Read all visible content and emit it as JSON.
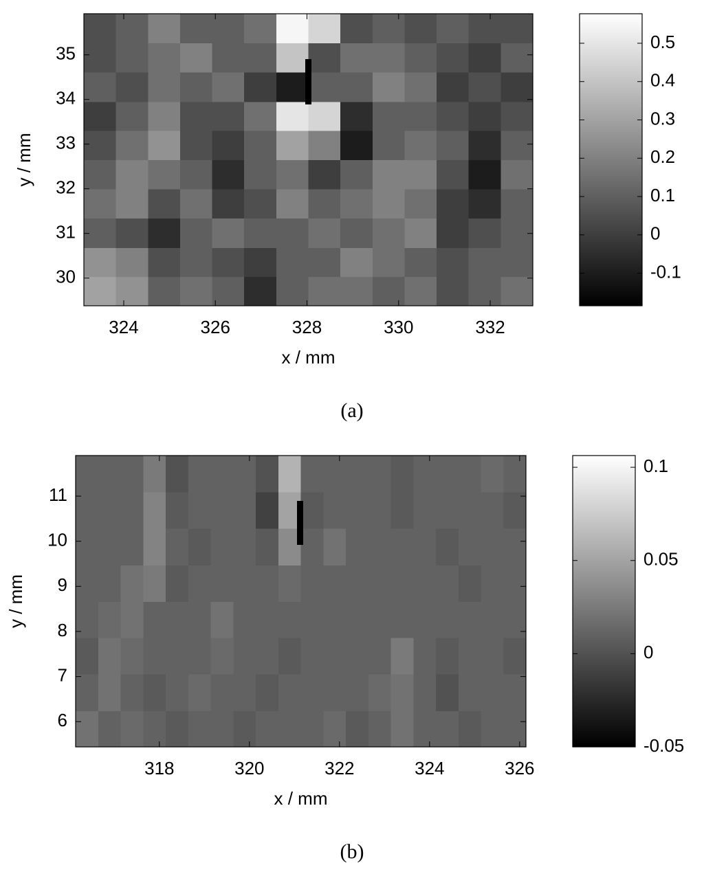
{
  "chart_data": [
    {
      "type": "heatmap",
      "caption": "(a)",
      "xlabel": "x / mm",
      "ylabel": "y / mm",
      "x": [
        323.48,
        324.18,
        324.88,
        325.58,
        326.28,
        326.98,
        327.68,
        328.38,
        329.08,
        329.78,
        330.48,
        331.18,
        331.88,
        332.58
      ],
      "y": [
        29.71,
        30.36,
        31.01,
        31.67,
        32.32,
        32.98,
        33.63,
        34.28,
        34.94,
        35.59
      ],
      "z": [
        [
          0.3,
          0.25,
          0.1,
          0.15,
          0.1,
          -0.05,
          0.1,
          0.15,
          0.15,
          0.1,
          0.15,
          0.05,
          0.1,
          0.15
        ],
        [
          0.25,
          0.2,
          0.05,
          0.1,
          0.05,
          0.0,
          0.1,
          0.1,
          0.2,
          0.15,
          0.1,
          0.05,
          0.1,
          0.1
        ],
        [
          0.1,
          0.05,
          -0.05,
          0.1,
          0.15,
          0.1,
          0.1,
          0.15,
          0.1,
          0.15,
          0.2,
          0.0,
          0.05,
          0.1
        ],
        [
          0.15,
          0.2,
          0.05,
          0.15,
          0.0,
          0.05,
          0.2,
          0.1,
          0.15,
          0.2,
          0.15,
          0.0,
          -0.05,
          0.1
        ],
        [
          0.1,
          0.2,
          0.15,
          0.1,
          -0.05,
          0.1,
          0.15,
          0.0,
          0.1,
          0.2,
          0.2,
          0.05,
          -0.1,
          0.15
        ],
        [
          0.05,
          0.15,
          0.25,
          0.05,
          0.0,
          0.1,
          0.3,
          0.2,
          -0.1,
          0.1,
          0.15,
          0.1,
          -0.05,
          0.1
        ],
        [
          0.0,
          0.1,
          0.2,
          0.05,
          0.05,
          0.15,
          0.5,
          0.45,
          -0.05,
          0.1,
          0.1,
          0.05,
          0.0,
          0.05
        ],
        [
          0.1,
          0.05,
          0.15,
          0.1,
          0.15,
          0.0,
          -0.1,
          0.1,
          0.1,
          0.2,
          0.15,
          0.0,
          0.05,
          0.0
        ],
        [
          0.05,
          0.1,
          0.15,
          0.2,
          0.1,
          0.1,
          0.4,
          0.05,
          0.15,
          0.15,
          0.1,
          0.05,
          0.0,
          0.1
        ],
        [
          0.05,
          0.1,
          0.2,
          0.1,
          0.1,
          0.15,
          0.55,
          0.45,
          0.05,
          0.1,
          0.05,
          0.1,
          0.05,
          0.05
        ]
      ],
      "xlim": [
        323.13,
        332.93
      ],
      "ylim": [
        29.38,
        35.92
      ],
      "xticks": [
        324,
        326,
        328,
        330,
        332
      ],
      "yticks": [
        30,
        31,
        32,
        33,
        34,
        35
      ],
      "clim": [
        -0.185,
        0.577
      ],
      "cticks": [
        -0.1,
        0,
        0.1,
        0.2,
        0.3,
        0.4,
        0.5
      ]
    },
    {
      "type": "heatmap",
      "caption": "(b)",
      "xlabel": "x / mm",
      "ylabel": "y / mm",
      "x": [
        316.39,
        316.89,
        317.39,
        317.89,
        318.39,
        318.89,
        319.39,
        319.89,
        320.39,
        320.89,
        321.39,
        321.89,
        322.39,
        322.89,
        323.39,
        323.89,
        324.39,
        324.89,
        325.39,
        325.89
      ],
      "y": [
        5.84,
        6.65,
        7.46,
        8.27,
        9.07,
        9.88,
        10.69,
        11.5
      ],
      "z": [
        [
          0.02,
          0.01,
          0.015,
          0.01,
          0.005,
          0.01,
          0.01,
          0.005,
          0.01,
          0.01,
          0.01,
          0.015,
          0.005,
          0.01,
          0.02,
          0.01,
          0.01,
          0.005,
          0.01,
          0.01
        ],
        [
          0.01,
          0.02,
          0.01,
          0.005,
          0.01,
          0.015,
          0.01,
          0.01,
          0.005,
          0.01,
          0.01,
          0.01,
          0.01,
          0.015,
          0.02,
          0.01,
          0.0,
          0.01,
          0.01,
          0.01
        ],
        [
          0.005,
          0.02,
          0.015,
          0.01,
          0.01,
          0.01,
          0.015,
          0.01,
          0.01,
          0.005,
          0.01,
          0.01,
          0.01,
          0.01,
          0.025,
          0.01,
          0.005,
          0.01,
          0.01,
          0.005
        ],
        [
          0.01,
          0.015,
          0.02,
          0.01,
          0.01,
          0.01,
          0.02,
          0.01,
          0.01,
          0.01,
          0.01,
          0.01,
          0.01,
          0.01,
          0.01,
          0.01,
          0.01,
          0.01,
          0.01,
          0.01
        ],
        [
          0.01,
          0.01,
          0.02,
          0.025,
          0.005,
          0.01,
          0.01,
          0.01,
          0.01,
          0.015,
          0.01,
          0.01,
          0.01,
          0.01,
          0.01,
          0.01,
          0.01,
          0.005,
          0.01,
          0.01
        ],
        [
          0.01,
          0.01,
          0.01,
          0.03,
          0.01,
          0.005,
          0.01,
          0.01,
          0.005,
          0.035,
          0.01,
          0.02,
          0.01,
          0.01,
          0.01,
          0.01,
          0.005,
          0.01,
          0.01,
          0.01
        ],
        [
          0.01,
          0.01,
          0.01,
          0.03,
          0.005,
          0.01,
          0.01,
          0.01,
          -0.01,
          0.05,
          0.005,
          0.01,
          0.01,
          0.01,
          0.005,
          0.01,
          0.01,
          0.01,
          0.01,
          0.005
        ],
        [
          0.01,
          0.01,
          0.01,
          0.025,
          0.0,
          0.01,
          0.01,
          0.01,
          0.0,
          0.06,
          0.01,
          0.01,
          0.01,
          0.01,
          0.005,
          0.01,
          0.01,
          0.01,
          0.015,
          0.01
        ]
      ],
      "xlim": [
        316.14,
        326.14
      ],
      "ylim": [
        5.44,
        11.9
      ],
      "xticks": [
        318,
        320,
        322,
        324,
        326
      ],
      "yticks": [
        6,
        7,
        8,
        9,
        10,
        11
      ],
      "clim": [
        -0.05,
        0.1063
      ],
      "cticks": [
        -0.05,
        0,
        0.05,
        0.1
      ]
    }
  ]
}
